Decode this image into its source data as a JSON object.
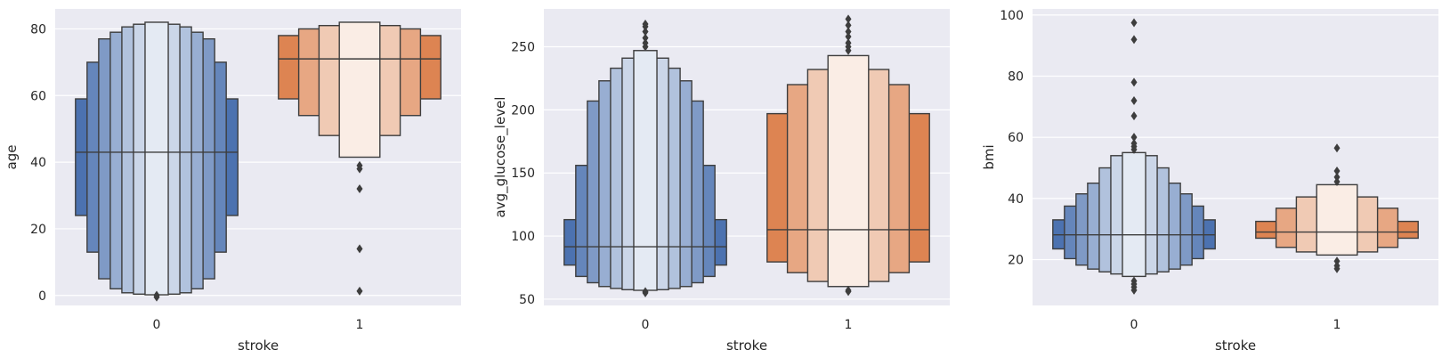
{
  "chart_data": [
    {
      "type": "boxen",
      "xlabel": "stroke",
      "ylabel": "age",
      "categories": [
        "0",
        "1"
      ],
      "ylim": [
        -3,
        86
      ],
      "yticks": [
        0,
        20,
        40,
        60,
        80
      ],
      "grid": true,
      "series": [
        {
          "category": "0",
          "color": "#4c72b0",
          "median": 43,
          "boxes": [
            {
              "low": 24,
              "high": 59
            },
            {
              "low": 13,
              "high": 70
            },
            {
              "low": 5,
              "high": 77
            },
            {
              "low": 2,
              "high": 79
            },
            {
              "low": 0.8,
              "high": 80.6
            },
            {
              "low": 0.4,
              "high": 81.4
            },
            {
              "low": 0.2,
              "high": 82
            }
          ],
          "outliers": [
            0.08,
            -0.5
          ]
        },
        {
          "category": "1",
          "color": "#dd8452",
          "median": 71,
          "boxes": [
            {
              "low": 59,
              "high": 78
            },
            {
              "low": 54,
              "high": 80
            },
            {
              "low": 48,
              "high": 81
            },
            {
              "low": 41.5,
              "high": 82
            }
          ],
          "outliers": [
            39,
            38,
            32,
            14,
            1.3
          ]
        }
      ]
    },
    {
      "type": "boxen",
      "xlabel": "stroke",
      "ylabel": "avg_glucose_level",
      "categories": [
        "0",
        "1"
      ],
      "ylim": [
        45,
        280
      ],
      "yticks": [
        50,
        100,
        150,
        200,
        250
      ],
      "grid": true,
      "series": [
        {
          "category": "0",
          "color": "#4c72b0",
          "median": 91.5,
          "boxes": [
            {
              "low": 77,
              "high": 113
            },
            {
              "low": 68,
              "high": 156
            },
            {
              "low": 63,
              "high": 207
            },
            {
              "low": 60,
              "high": 223
            },
            {
              "low": 58.5,
              "high": 233
            },
            {
              "low": 57.5,
              "high": 241
            },
            {
              "low": 57,
              "high": 247
            }
          ],
          "outliers": [
            56,
            55,
            250,
            253,
            257,
            262,
            266,
            268
          ]
        },
        {
          "category": "1",
          "color": "#dd8452",
          "median": 105,
          "boxes": [
            {
              "low": 79.5,
              "high": 197
            },
            {
              "low": 71,
              "high": 220
            },
            {
              "low": 64,
              "high": 232
            },
            {
              "low": 60,
              "high": 243
            }
          ],
          "outliers": [
            57,
            56,
            247,
            250,
            253,
            258,
            262,
            267,
            272
          ]
        }
      ]
    },
    {
      "type": "boxen",
      "xlabel": "stroke",
      "ylabel": "bmi",
      "categories": [
        "0",
        "1"
      ],
      "ylim": [
        5,
        102
      ],
      "yticks": [
        20,
        40,
        60,
        80,
        100
      ],
      "grid": true,
      "series": [
        {
          "category": "0",
          "color": "#4c72b0",
          "median": 28.1,
          "boxes": [
            {
              "low": 23.5,
              "high": 33
            },
            {
              "low": 20.3,
              "high": 37.5
            },
            {
              "low": 18.2,
              "high": 41.5
            },
            {
              "low": 16.9,
              "high": 45
            },
            {
              "low": 16,
              "high": 50
            },
            {
              "low": 15.3,
              "high": 54
            },
            {
              "low": 14.5,
              "high": 55
            }
          ],
          "outliers": [
            13,
            12,
            11,
            10,
            56,
            57,
            58,
            60,
            67,
            72,
            78,
            92,
            97.5
          ]
        },
        {
          "category": "1",
          "color": "#dd8452",
          "median": 29,
          "boxes": [
            {
              "low": 27,
              "high": 32.5
            },
            {
              "low": 24,
              "high": 36.8
            },
            {
              "low": 22.5,
              "high": 40.5
            },
            {
              "low": 21.5,
              "high": 44.5
            }
          ],
          "outliers": [
            19.5,
            18,
            17,
            45.5,
            47,
            49,
            56.5
          ]
        }
      ]
    }
  ]
}
